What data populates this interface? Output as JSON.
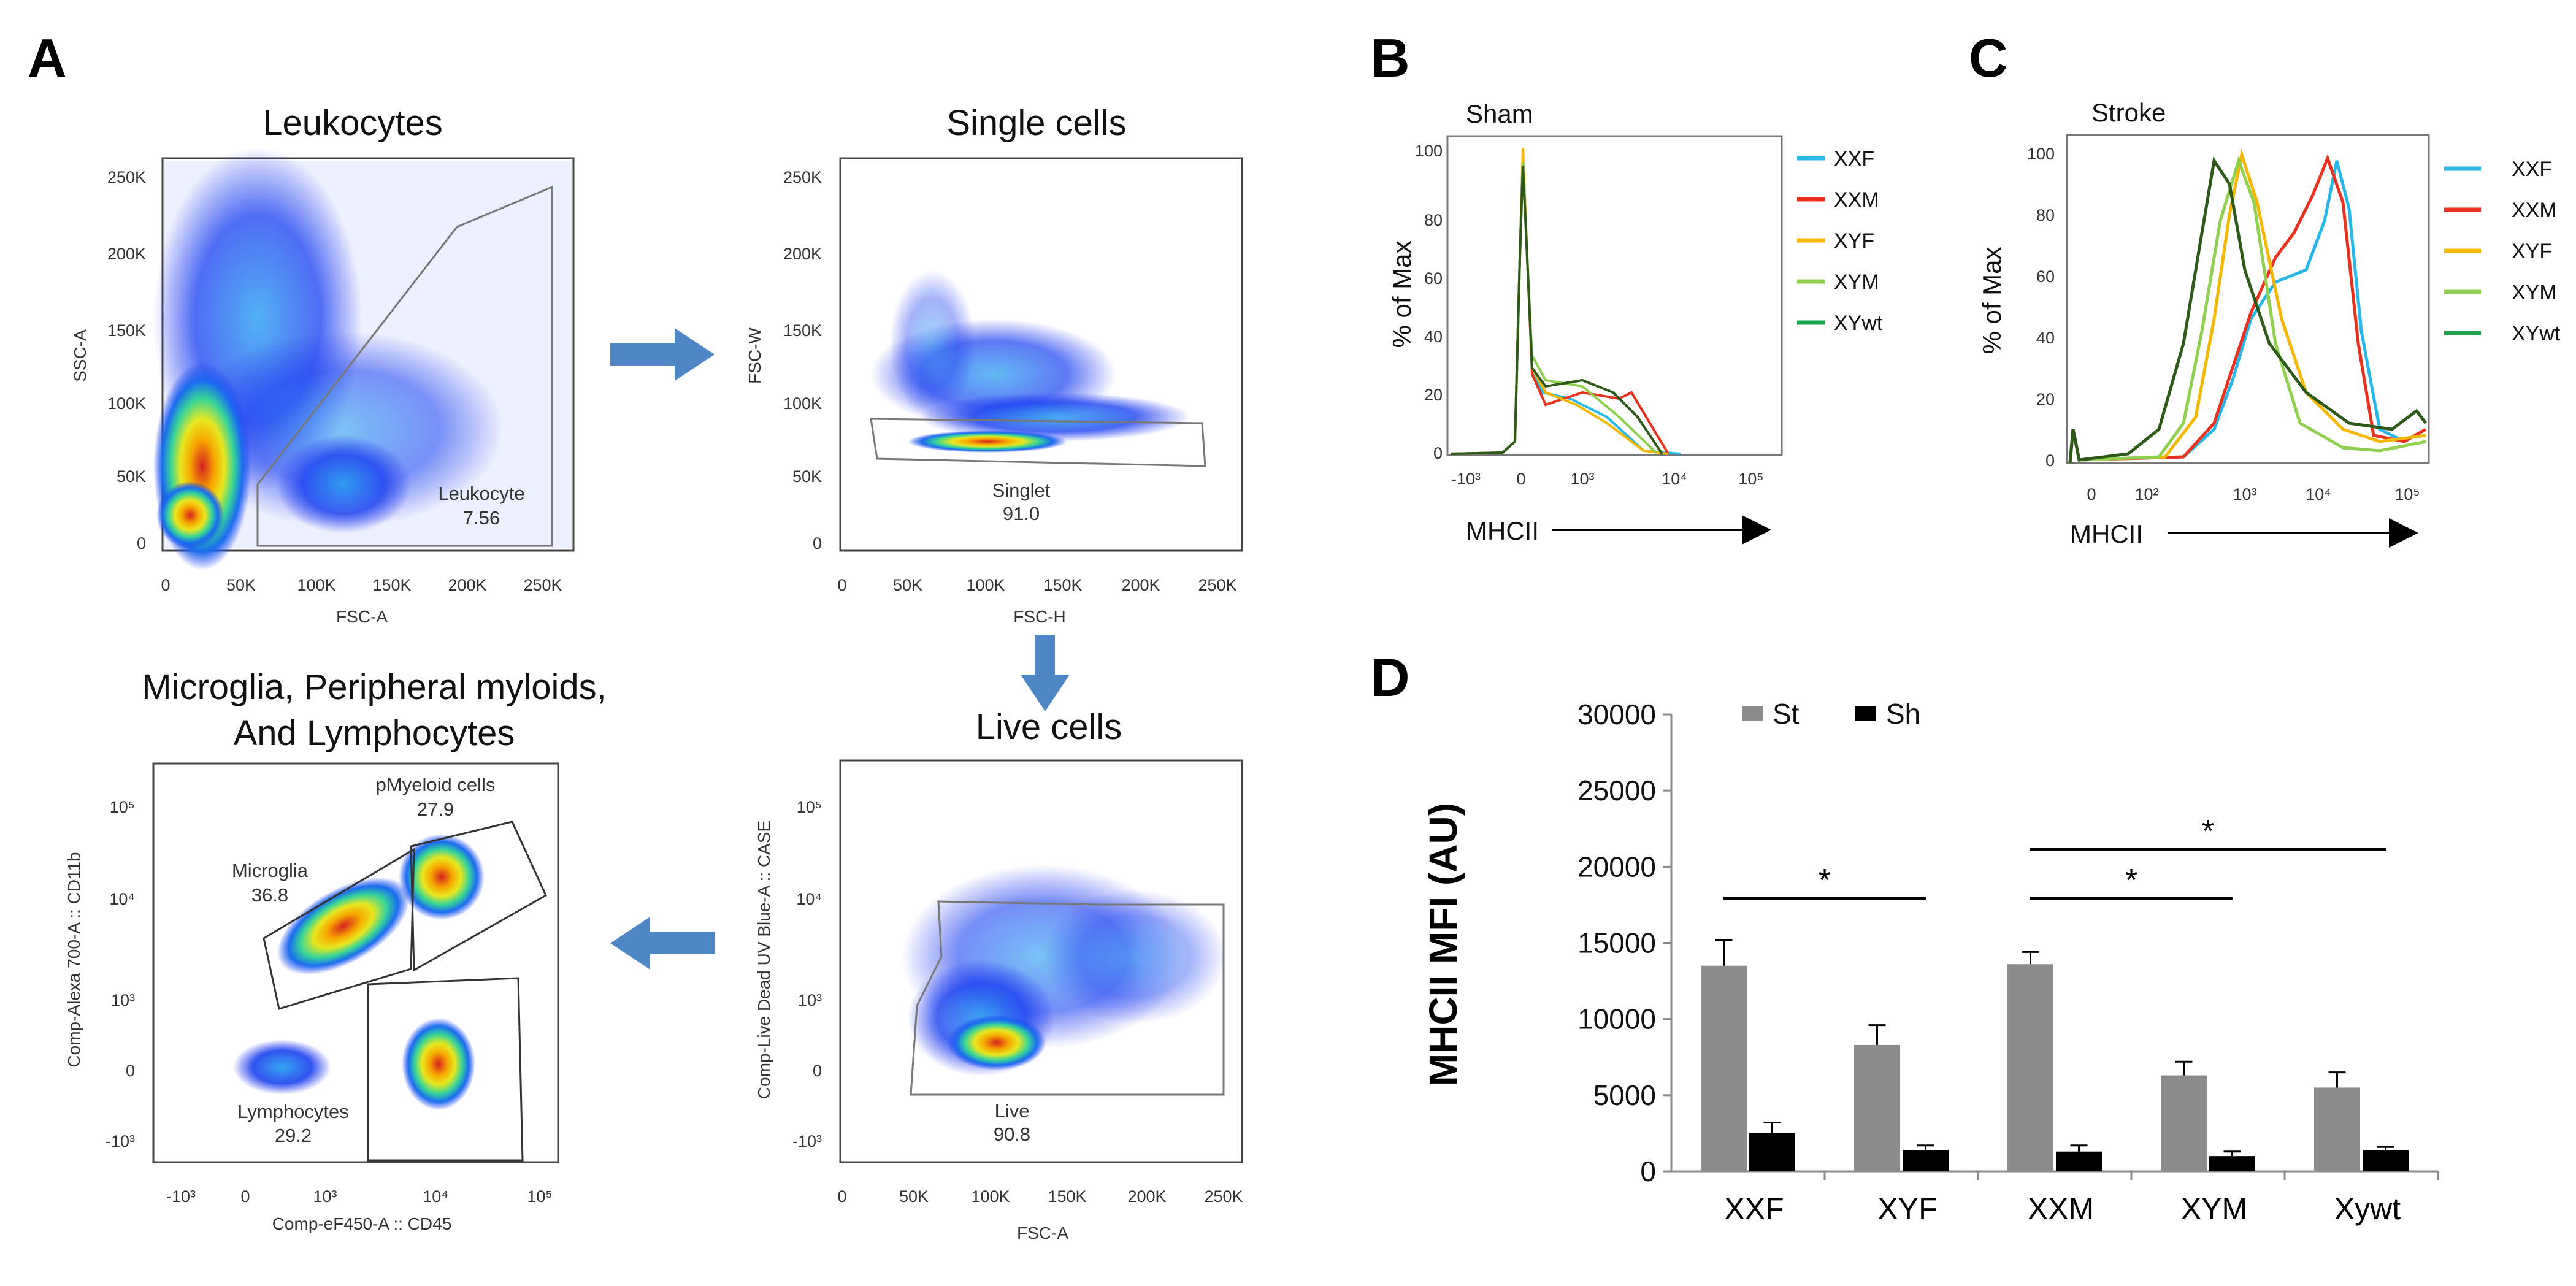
{
  "panel_letters": {
    "a": "A",
    "b": "B",
    "c": "C",
    "d": "D"
  },
  "flow": {
    "leukocytes": {
      "title": "Leukocytes",
      "xlabel": "FSC-A",
      "ylabel": "SSC-A",
      "xticks": [
        "0",
        "50K",
        "100K",
        "150K",
        "200K",
        "250K"
      ],
      "yticks": [
        "0",
        "50K",
        "100K",
        "150K",
        "200K",
        "250K"
      ],
      "gate_name": "Leukocyte",
      "gate_value": "7.56"
    },
    "single_cells": {
      "title": "Single cells",
      "xlabel": "FSC-H",
      "ylabel": "FSC-W",
      "xticks": [
        "0",
        "50K",
        "100K",
        "150K",
        "200K",
        "250K"
      ],
      "yticks": [
        "0",
        "50K",
        "100K",
        "150K",
        "200K",
        "250K"
      ],
      "gate_name": "Singlet",
      "gate_value": "91.0"
    },
    "live_cells": {
      "title": "Live cells",
      "xlabel": "FSC-A",
      "ylabel": "Comp-Live Dead UV Blue-A :: CASE",
      "xticks": [
        "0",
        "50K",
        "100K",
        "150K",
        "200K",
        "250K"
      ],
      "yticks": [
        "-10³",
        "0",
        "10³",
        "10⁴",
        "10⁵"
      ],
      "gate_name": "Live",
      "gate_value": "90.8"
    },
    "myeloid": {
      "title_line1": "Microglia, Peripheral myloids,",
      "title_line2": "And Lymphocytes",
      "xlabel": "Comp-eF450-A :: CD45",
      "ylabel": "Comp-Alexa 700-A :: CD11b",
      "xticks": [
        "-10³",
        "0",
        "10³",
        "10⁴",
        "10⁵"
      ],
      "yticks": [
        "-10³",
        "0",
        "10³",
        "10⁴",
        "10⁵"
      ],
      "gates": [
        {
          "name": "pMyeloid cells",
          "value": "27.9"
        },
        {
          "name": "Microglia",
          "value": "36.8"
        },
        {
          "name": "Lymphocytes",
          "value": "29.2"
        }
      ]
    }
  },
  "histograms": {
    "sham": {
      "title": "Sham",
      "ylabel": "% of Max",
      "xlabel": "MHCII",
      "yticks": [
        "0",
        "20",
        "40",
        "60",
        "80",
        "100"
      ],
      "xticks": [
        "-10³",
        "0",
        "10³",
        "10⁴",
        "10⁵"
      ]
    },
    "stroke": {
      "title": "Stroke",
      "ylabel": "% of Max",
      "xlabel": "MHCII",
      "yticks": [
        "0",
        "20",
        "40",
        "60",
        "80",
        "100"
      ],
      "xticks": [
        "0",
        "10²",
        "10³",
        "10⁴",
        "10⁵"
      ]
    },
    "legend": [
      {
        "name": "XXF",
        "color": "#29b6e8"
      },
      {
        "name": "XXM",
        "color": "#e8321e"
      },
      {
        "name": "XYF",
        "color": "#f5b700"
      },
      {
        "name": "XYM",
        "color": "#8fd14f"
      },
      {
        "name": "XYwt",
        "color": "#1aa34a"
      }
    ]
  },
  "chart_data": {
    "type": "bar",
    "ylabel": "MHCII MFI (AU)",
    "categories": [
      "XXF",
      "XYF",
      "XXM",
      "XYM",
      "Xywt"
    ],
    "ylim": [
      0,
      30000
    ],
    "yticks": [
      "0",
      "5000",
      "10000",
      "15000",
      "20000",
      "25000",
      "30000"
    ],
    "legend_position": "top-left",
    "series": [
      {
        "name": "St",
        "color": "#8c8c8c",
        "values": [
          13500,
          8300,
          13600,
          6300,
          5500
        ],
        "errors": [
          1700,
          1300,
          800,
          900,
          1000
        ]
      },
      {
        "name": "Sh",
        "color": "#000000",
        "values": [
          2500,
          1400,
          1300,
          1000,
          1400
        ],
        "errors": [
          700,
          300,
          400,
          300,
          200
        ]
      }
    ],
    "significance": [
      {
        "from": "XXF",
        "to": "XYF",
        "label": "*"
      },
      {
        "from": "XXM",
        "to": "XYM",
        "label": "*"
      },
      {
        "from": "XXM",
        "to": "Xywt",
        "label": "*"
      }
    ]
  }
}
